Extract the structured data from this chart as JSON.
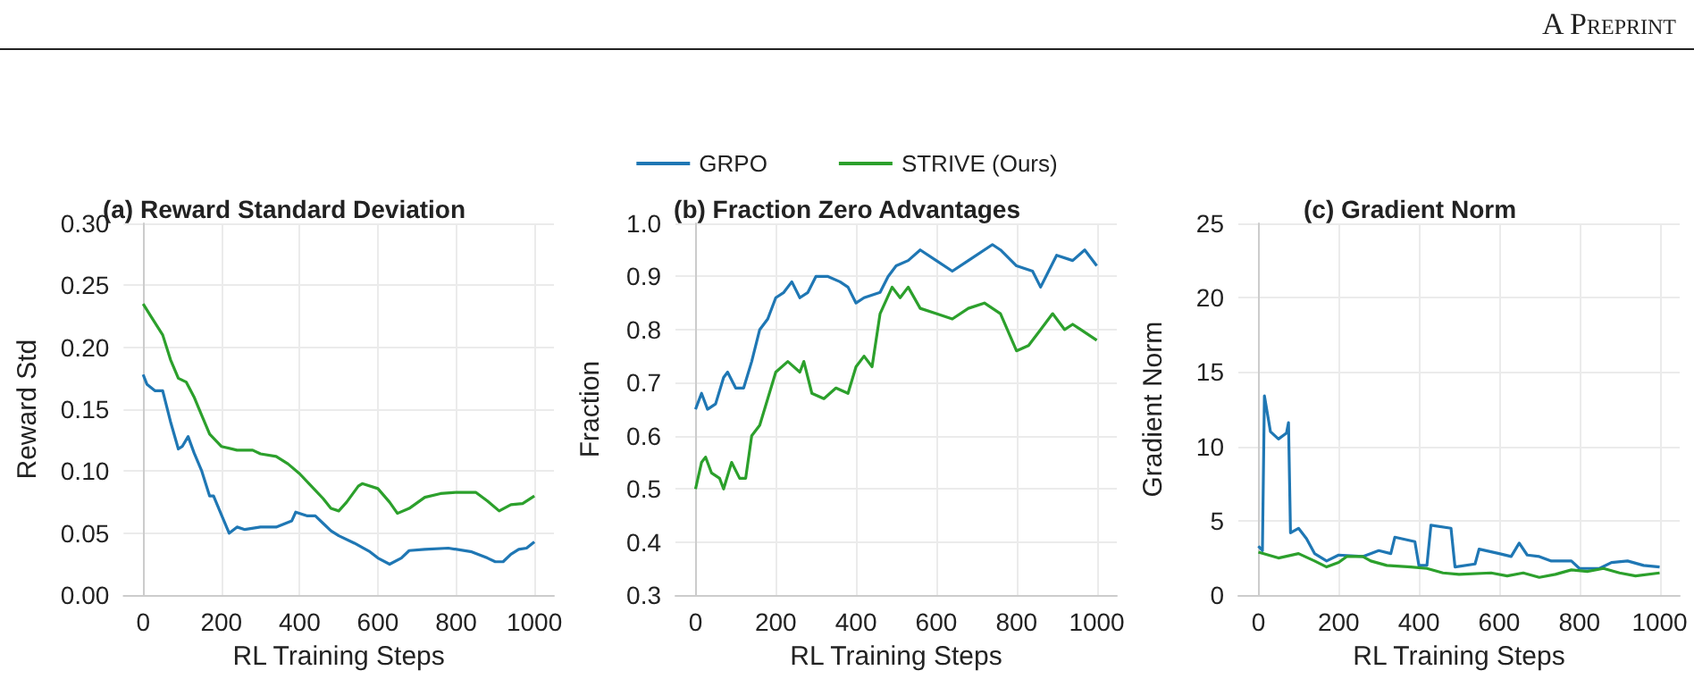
{
  "chart_data": [
    {
      "type": "line",
      "title": "(a) Reward Standard Deviation",
      "xlabel": "RL Training Steps",
      "ylabel": "Reward Std",
      "xlim": [
        -50,
        1050
      ],
      "xticks": [
        0,
        200,
        400,
        600,
        800,
        1000
      ],
      "ylim": [
        0,
        0.3
      ],
      "yticks": [
        {
          "value": 0,
          "label": "0.00"
        },
        {
          "value": 0.05,
          "label": "0.05"
        },
        {
          "value": 0.1,
          "label": "0.10"
        },
        {
          "value": 0.15,
          "label": "0.15"
        },
        {
          "value": 0.2,
          "label": "0.20"
        },
        {
          "value": 0.25,
          "label": "0.25"
        },
        {
          "value": 0.3,
          "label": "0.30"
        }
      ],
      "grid": true,
      "legend": false,
      "marker": "none",
      "line_style": "solid",
      "series": [
        {
          "color": "#1f77b4",
          "x": [
            0,
            10,
            30,
            50,
            70,
            90,
            100,
            115,
            130,
            150,
            170,
            180,
            200,
            220,
            240,
            260,
            300,
            340,
            380,
            390,
            420,
            440,
            460,
            480,
            500,
            540,
            580,
            600,
            630,
            660,
            680,
            720,
            780,
            840,
            880,
            900,
            920,
            940,
            960,
            980,
            1000
          ],
          "values": [
            0.178,
            0.17,
            0.165,
            0.165,
            0.14,
            0.118,
            0.12,
            0.128,
            0.115,
            0.1,
            0.08,
            0.08,
            0.065,
            0.05,
            0.055,
            0.053,
            0.055,
            0.055,
            0.06,
            0.067,
            0.064,
            0.064,
            0.058,
            0.052,
            0.048,
            0.042,
            0.035,
            0.03,
            0.025,
            0.03,
            0.036,
            0.037,
            0.038,
            0.035,
            0.03,
            0.027,
            0.027,
            0.033,
            0.037,
            0.038,
            0.043
          ]
        },
        {
          "color": "#2ca02c",
          "x": [
            0,
            20,
            50,
            70,
            90,
            110,
            130,
            150,
            170,
            200,
            240,
            280,
            300,
            340,
            370,
            400,
            430,
            460,
            480,
            500,
            520,
            550,
            560,
            600,
            630,
            650,
            680,
            720,
            760,
            800,
            850,
            880,
            910,
            940,
            970,
            1000
          ],
          "values": [
            0.235,
            0.225,
            0.21,
            0.19,
            0.175,
            0.172,
            0.16,
            0.145,
            0.13,
            0.12,
            0.117,
            0.117,
            0.114,
            0.112,
            0.106,
            0.098,
            0.088,
            0.078,
            0.07,
            0.068,
            0.075,
            0.088,
            0.09,
            0.086,
            0.075,
            0.066,
            0.07,
            0.079,
            0.082,
            0.083,
            0.083,
            0.076,
            0.068,
            0.073,
            0.074,
            0.08
          ]
        }
      ]
    },
    {
      "type": "line",
      "title": "(b) Fraction Zero Advantages",
      "xlabel": "RL Training Steps",
      "ylabel": "Fraction",
      "xlim": [
        -50,
        1050
      ],
      "xticks": [
        0,
        200,
        400,
        600,
        800,
        1000
      ],
      "ylim": [
        0.3,
        1.0
      ],
      "yticks": [
        0.3,
        0.4,
        0.5,
        0.6,
        0.7,
        0.8,
        0.9,
        {
          "value": 1.0,
          "label": "1.0"
        }
      ],
      "grid": true,
      "legend": "top",
      "marker": "none",
      "line_style": "solid",
      "series": [
        {
          "name": "GRPO",
          "color": "#1f77b4",
          "x": [
            0,
            15,
            30,
            50,
            70,
            80,
            100,
            120,
            140,
            160,
            180,
            200,
            220,
            240,
            260,
            280,
            300,
            330,
            360,
            380,
            400,
            420,
            460,
            480,
            500,
            530,
            560,
            600,
            640,
            680,
            740,
            760,
            800,
            840,
            860,
            880,
            900,
            940,
            970,
            1000
          ],
          "values": [
            0.65,
            0.68,
            0.65,
            0.66,
            0.71,
            0.72,
            0.69,
            0.69,
            0.74,
            0.8,
            0.82,
            0.86,
            0.87,
            0.89,
            0.86,
            0.87,
            0.9,
            0.9,
            0.89,
            0.88,
            0.85,
            0.86,
            0.87,
            0.9,
            0.92,
            0.93,
            0.95,
            0.93,
            0.91,
            0.93,
            0.96,
            0.95,
            0.92,
            0.91,
            0.88,
            0.91,
            0.94,
            0.93,
            0.95,
            0.92
          ]
        },
        {
          "name": "STRIVE (Ours)",
          "color": "#2ca02c",
          "x": [
            0,
            15,
            25,
            40,
            60,
            70,
            90,
            110,
            125,
            140,
            160,
            180,
            200,
            230,
            260,
            270,
            290,
            320,
            350,
            380,
            400,
            420,
            440,
            460,
            490,
            510,
            530,
            560,
            600,
            640,
            680,
            720,
            760,
            800,
            830,
            860,
            890,
            920,
            940,
            960,
            1000
          ],
          "values": [
            0.5,
            0.55,
            0.56,
            0.53,
            0.52,
            0.5,
            0.55,
            0.52,
            0.52,
            0.6,
            0.62,
            0.67,
            0.72,
            0.74,
            0.72,
            0.74,
            0.68,
            0.67,
            0.69,
            0.68,
            0.73,
            0.75,
            0.73,
            0.83,
            0.88,
            0.86,
            0.88,
            0.84,
            0.83,
            0.82,
            0.84,
            0.85,
            0.83,
            0.76,
            0.77,
            0.8,
            0.83,
            0.8,
            0.81,
            0.8,
            0.78
          ]
        }
      ]
    },
    {
      "type": "line",
      "title": "(c) Gradient Norm",
      "xlabel": "RL Training Steps",
      "ylabel": "Gradient Norm",
      "xlim": [
        -50,
        1050
      ],
      "xticks": [
        0,
        200,
        400,
        600,
        800,
        1000
      ],
      "ylim": [
        0,
        25
      ],
      "yticks": [
        0,
        5,
        10,
        15,
        20,
        25
      ],
      "grid": true,
      "legend": false,
      "marker": "none",
      "line_style": "solid",
      "annotations": [
        "A Preprint"
      ],
      "series": [
        {
          "color": "#1f77b4",
          "x": [
            0,
            10,
            15,
            30,
            50,
            70,
            75,
            80,
            100,
            120,
            140,
            170,
            200,
            260,
            300,
            330,
            340,
            390,
            400,
            420,
            430,
            480,
            490,
            540,
            550,
            600,
            630,
            650,
            670,
            700,
            730,
            780,
            800,
            850,
            880,
            920,
            960,
            1000
          ],
          "values": [
            3.3,
            3.0,
            13.4,
            11.0,
            10.5,
            10.9,
            11.6,
            4.2,
            4.5,
            3.8,
            2.8,
            2.3,
            2.7,
            2.6,
            3.0,
            2.8,
            3.9,
            3.6,
            2.0,
            2.0,
            4.7,
            4.5,
            1.9,
            2.1,
            3.1,
            2.8,
            2.6,
            3.5,
            2.7,
            2.6,
            2.3,
            2.3,
            1.8,
            1.8,
            2.2,
            2.3,
            2.0,
            1.9
          ]
        },
        {
          "color": "#2ca02c",
          "x": [
            0,
            50,
            100,
            140,
            170,
            200,
            220,
            260,
            280,
            320,
            380,
            420,
            460,
            500,
            580,
            620,
            660,
            700,
            740,
            780,
            820,
            860,
            900,
            940,
            1000
          ],
          "values": [
            2.9,
            2.5,
            2.8,
            2.3,
            1.9,
            2.2,
            2.6,
            2.6,
            2.3,
            2.0,
            1.9,
            1.8,
            1.5,
            1.4,
            1.5,
            1.3,
            1.5,
            1.2,
            1.4,
            1.7,
            1.6,
            1.8,
            1.5,
            1.3,
            1.5
          ]
        }
      ]
    }
  ]
}
